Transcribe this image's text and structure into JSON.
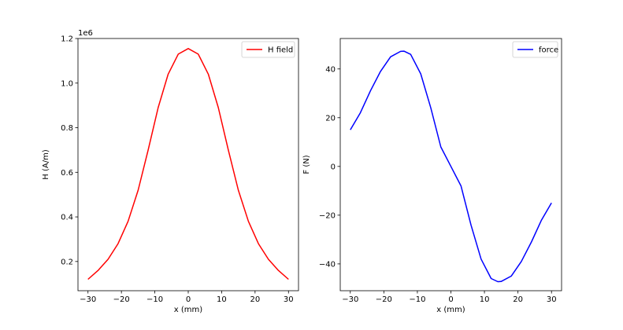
{
  "chart_data": [
    {
      "type": "line",
      "xlabel": "x (mm)",
      "ylabel": "H (A/m)",
      "offset_text": "1e6",
      "xlim": [
        -33,
        33
      ],
      "ylim": [
        0.069,
        1.2
      ],
      "xticks": [
        -30,
        -20,
        -10,
        0,
        10,
        20,
        30
      ],
      "yticks": [
        0.2,
        0.4,
        0.6,
        0.8,
        1.0,
        1.2
      ],
      "ytick_labels": [
        "0.2",
        "0.4",
        "0.6",
        "0.8",
        "1.0",
        "1.2"
      ],
      "legend": "top-right",
      "series": [
        {
          "name": "H field",
          "color": "#ff0000",
          "x": [
            -30,
            -27,
            -24,
            -21,
            -18,
            -15,
            -12,
            -9,
            -6,
            -3,
            0,
            3,
            6,
            9,
            12,
            15,
            18,
            21,
            24,
            27,
            30
          ],
          "y": [
            0.12,
            0.16,
            0.21,
            0.28,
            0.38,
            0.52,
            0.7,
            0.89,
            1.04,
            1.13,
            1.155,
            1.13,
            1.04,
            0.89,
            0.7,
            0.52,
            0.38,
            0.28,
            0.21,
            0.16,
            0.12
          ]
        }
      ]
    },
    {
      "type": "line",
      "xlabel": "x (mm)",
      "ylabel": "F (N)",
      "xlim": [
        -33,
        33
      ],
      "ylim": [
        -51,
        52.5
      ],
      "xticks": [
        -30,
        -20,
        -10,
        0,
        10,
        20,
        30
      ],
      "yticks": [
        -40,
        -20,
        0,
        20,
        40
      ],
      "ytick_labels": [
        "−40",
        "−20",
        "0",
        "20",
        "40"
      ],
      "legend": "top-right",
      "series": [
        {
          "name": "force",
          "color": "#0000ff",
          "x": [
            -30,
            -27,
            -24,
            -21,
            -18,
            -15,
            -14,
            -12,
            -9,
            -6,
            -3,
            0,
            3,
            6,
            9,
            12,
            14,
            15,
            18,
            21,
            24,
            27,
            30
          ],
          "y": [
            15,
            22,
            31,
            39,
            45,
            47.2,
            47.3,
            46,
            38,
            24,
            8,
            0,
            -8,
            -24,
            -38,
            -46,
            -47.3,
            -47.2,
            -45,
            -39,
            -31,
            -22,
            -15
          ]
        }
      ]
    }
  ]
}
